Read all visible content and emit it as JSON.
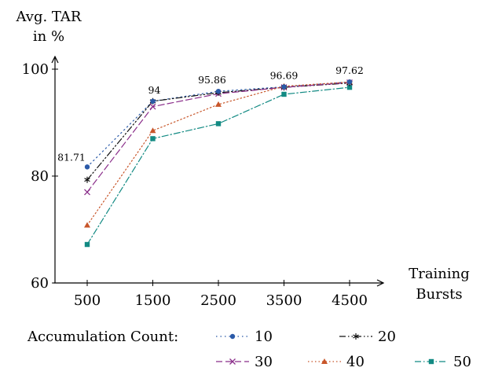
{
  "chart_data": {
    "type": "line",
    "title": "",
    "ylabel_lines": [
      "Avg. TAR",
      "in %"
    ],
    "xlabel_lines": [
      "Training",
      "Bursts"
    ],
    "x": [
      500,
      1500,
      2500,
      3500,
      4500
    ],
    "xticks": [
      "500",
      "1500",
      "2500",
      "3500",
      "4500"
    ],
    "yticks": [
      60,
      80,
      100
    ],
    "ylim": [
      60,
      103
    ],
    "grid": false,
    "legend_title": "Accumulation Count:",
    "legend_position": "bottom",
    "series": [
      {
        "name": "10",
        "values": [
          81.71,
          94,
          95.86,
          96.69,
          97.62
        ],
        "color": "#2b5aa8",
        "marker": "circle",
        "dash": "1.5 4"
      },
      {
        "name": "20",
        "values": [
          79.3,
          94.0,
          95.6,
          96.6,
          97.4
        ],
        "color": "#111111",
        "marker": "star",
        "dash": "8 3 1.5 3 1.5 3"
      },
      {
        "name": "30",
        "values": [
          77.0,
          93.0,
          95.4,
          96.6,
          97.5
        ],
        "color": "#8b2f8b",
        "marker": "x",
        "dash": "8 4"
      },
      {
        "name": "40",
        "values": [
          70.8,
          88.5,
          93.4,
          96.8,
          97.6
        ],
        "color": "#c8562a",
        "marker": "triangle",
        "dash": "1.5 3"
      },
      {
        "name": "50",
        "values": [
          67.2,
          87.0,
          89.8,
          95.3,
          96.6
        ],
        "color": "#128a83",
        "marker": "square",
        "dash": "8 3 1.5 3"
      }
    ],
    "data_labels": [
      {
        "x": 500,
        "y": 81.71,
        "text": "81.71"
      },
      {
        "x": 1500,
        "y": 94,
        "text": "94"
      },
      {
        "x": 2500,
        "y": 95.86,
        "text": "95.86"
      },
      {
        "x": 3500,
        "y": 96.69,
        "text": "96.69"
      },
      {
        "x": 4500,
        "y": 97.62,
        "text": "97.62"
      }
    ]
  }
}
